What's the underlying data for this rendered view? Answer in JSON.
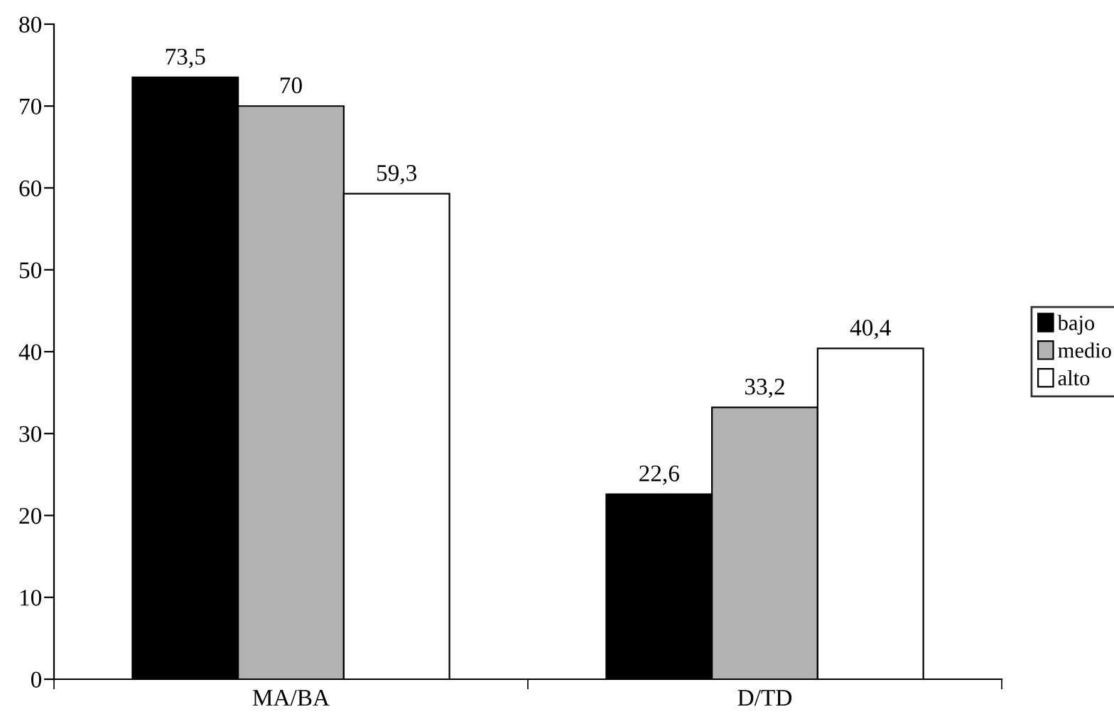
{
  "chart_data": {
    "type": "bar",
    "categories": [
      "MA/BA",
      "D/TD"
    ],
    "series": [
      {
        "name": "bajo",
        "color": "#000000",
        "values": [
          73.5,
          22.6
        ],
        "value_labels": [
          "73,5",
          "22,6"
        ]
      },
      {
        "name": "medio",
        "color": "#b2b2b2",
        "values": [
          70,
          33.2
        ],
        "value_labels": [
          "70",
          "33,2"
        ]
      },
      {
        "name": "alto",
        "color": "#ffffff",
        "values": [
          59.3,
          40.4
        ],
        "value_labels": [
          "59,3",
          "40,4"
        ]
      }
    ],
    "ylim": [
      0,
      80
    ],
    "yticks": [
      0,
      10,
      20,
      30,
      40,
      50,
      60,
      70,
      80
    ],
    "grid": false,
    "legend": "right"
  }
}
